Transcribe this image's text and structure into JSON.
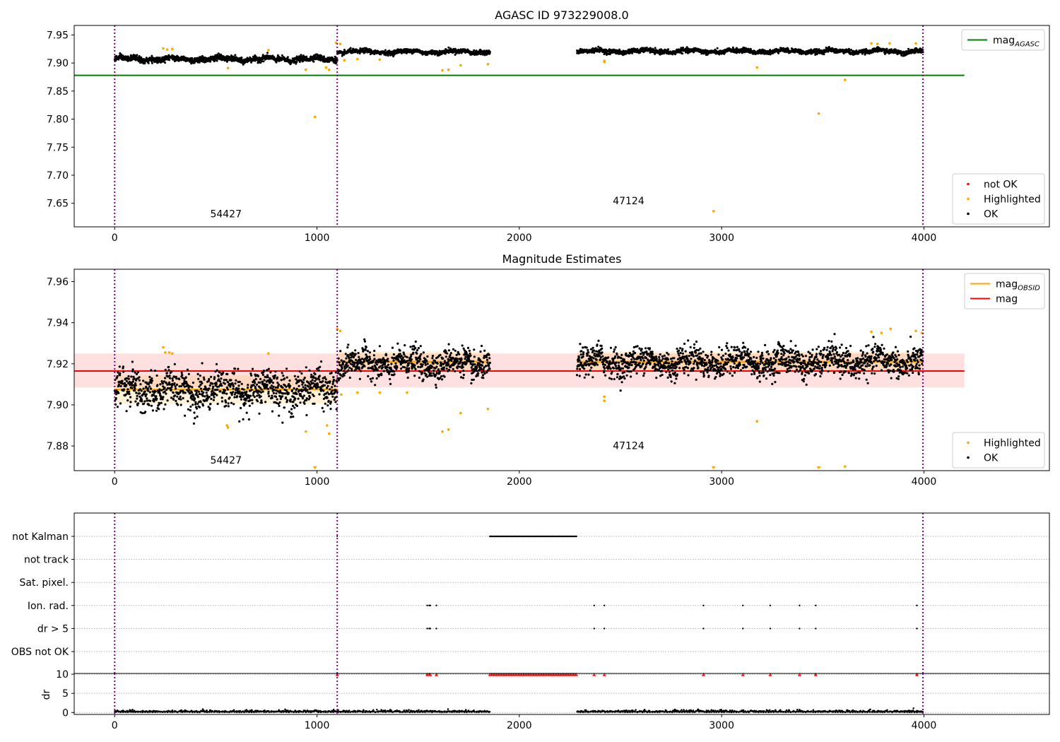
{
  "colors": {
    "ok": "#000000",
    "highlighted": "#ffa500",
    "not_ok": "#ff0000",
    "mag_agasc": "#008000",
    "mag_obsid": "#ffa500",
    "mag": "#ff0000",
    "obs_boundary": "#800080",
    "obs_boundary_alt": "#0000ff",
    "grid": "#b0b0b0"
  },
  "chart_data": [
    {
      "id": "agasc",
      "type": "scatter",
      "title": "AGASC ID 973229008.0",
      "xlim": [
        -200,
        4620
      ],
      "ylim": [
        7.608,
        7.967
      ],
      "x_ticks": [
        0,
        1000,
        2000,
        3000,
        4000
      ],
      "y_ticks": [
        7.65,
        7.7,
        7.75,
        7.8,
        7.85,
        7.9,
        7.95
      ],
      "y_tick_labels": [
        "7.65",
        "7.70",
        "7.75",
        "7.80",
        "7.85",
        "7.90",
        "7.95"
      ],
      "obs_boundaries": [
        0,
        1100,
        3995
      ],
      "obs_labels": [
        {
          "text": "54427",
          "x": 550,
          "y": 7.625
        },
        {
          "text": "47124",
          "x": 2540,
          "y": 7.648
        }
      ],
      "reference_line": {
        "name": "mag_AGASC",
        "y": 7.878,
        "x0": -200,
        "x1": 4200
      },
      "segments": [
        {
          "x0": 0,
          "x1": 1100,
          "mean": 7.907,
          "std": 0.0045
        },
        {
          "x0": 1100,
          "x1": 1855,
          "mean": 7.92,
          "std": 0.0035
        },
        {
          "x0": 2285,
          "x1": 3995,
          "mean": 7.921,
          "std": 0.0035
        }
      ],
      "highlighted_points": [
        {
          "x": 240,
          "y": 7.926
        },
        {
          "x": 260,
          "y": 7.924
        },
        {
          "x": 285,
          "y": 7.925
        },
        {
          "x": 560,
          "y": 7.891
        },
        {
          "x": 760,
          "y": 7.923
        },
        {
          "x": 945,
          "y": 7.888
        },
        {
          "x": 990,
          "y": 7.804
        },
        {
          "x": 1045,
          "y": 7.892
        },
        {
          "x": 1060,
          "y": 7.888
        },
        {
          "x": 1095,
          "y": 7.936
        },
        {
          "x": 1115,
          "y": 7.934
        },
        {
          "x": 1135,
          "y": 7.905
        },
        {
          "x": 1200,
          "y": 7.907
        },
        {
          "x": 1310,
          "y": 7.906
        },
        {
          "x": 1620,
          "y": 7.887
        },
        {
          "x": 1650,
          "y": 7.888
        },
        {
          "x": 1710,
          "y": 7.896
        },
        {
          "x": 1845,
          "y": 7.898
        },
        {
          "x": 2420,
          "y": 7.904
        },
        {
          "x": 2420,
          "y": 7.902
        },
        {
          "x": 3175,
          "y": 7.892
        },
        {
          "x": 3480,
          "y": 7.81
        },
        {
          "x": 3610,
          "y": 7.87
        },
        {
          "x": 2960,
          "y": 7.636
        },
        {
          "x": 3740,
          "y": 7.935
        },
        {
          "x": 3770,
          "y": 7.934
        },
        {
          "x": 3830,
          "y": 7.935
        },
        {
          "x": 3960,
          "y": 7.935
        }
      ],
      "legends": [
        {
          "position": "upper-right",
          "entries": [
            {
              "label": "mag",
              "sub": "AGASC",
              "kind": "line",
              "color": "#008000"
            }
          ]
        },
        {
          "position": "lower-right",
          "entries": [
            {
              "label": "not OK",
              "kind": "marker",
              "color": "#ff0000"
            },
            {
              "label": "Highlighted",
              "kind": "marker",
              "color": "#ffa500"
            },
            {
              "label": "OK",
              "kind": "marker",
              "color": "#000000"
            }
          ]
        }
      ]
    },
    {
      "id": "estimates",
      "type": "scatter",
      "title": "Magnitude Estimates",
      "xlim": [
        -200,
        4620
      ],
      "ylim": [
        7.868,
        7.966
      ],
      "x_ticks": [
        0,
        1000,
        2000,
        3000,
        4000
      ],
      "y_ticks": [
        7.88,
        7.9,
        7.92,
        7.94,
        7.96
      ],
      "y_tick_labels": [
        "7.88",
        "7.90",
        "7.92",
        "7.94",
        "7.96"
      ],
      "obs_boundaries": [
        0,
        1100,
        3995
      ],
      "obs_labels": [
        {
          "text": "54427",
          "x": 550,
          "y": 7.8715
        },
        {
          "text": "47124",
          "x": 2540,
          "y": 7.8785
        }
      ],
      "mag": {
        "y": 7.9165,
        "band": [
          7.9085,
          7.925
        ],
        "x0": -200,
        "x1": 4200
      },
      "mag_obsid": [
        {
          "x0": 0,
          "x1": 1100,
          "y": 7.9075,
          "band": [
            7.9005,
            7.9145
          ]
        },
        {
          "x0": 1100,
          "x1": 1855,
          "y": 7.921,
          "band": [
            7.9165,
            7.926
          ]
        },
        {
          "x0": 2285,
          "x1": 3995,
          "y": 7.921,
          "band": [
            7.9165,
            7.926
          ]
        }
      ],
      "highlighted_points": [
        {
          "x": 240,
          "y": 7.928
        },
        {
          "x": 250,
          "y": 7.9255
        },
        {
          "x": 270,
          "y": 7.9255
        },
        {
          "x": 285,
          "y": 7.925
        },
        {
          "x": 555,
          "y": 7.89
        },
        {
          "x": 560,
          "y": 7.889
        },
        {
          "x": 760,
          "y": 7.925
        },
        {
          "x": 945,
          "y": 7.887
        },
        {
          "x": 1050,
          "y": 7.89
        },
        {
          "x": 1060,
          "y": 7.886
        },
        {
          "x": 1100,
          "y": 7.937
        },
        {
          "x": 1115,
          "y": 7.936
        },
        {
          "x": 1120,
          "y": 7.905
        },
        {
          "x": 1200,
          "y": 7.906
        },
        {
          "x": 1310,
          "y": 7.906
        },
        {
          "x": 1445,
          "y": 7.906
        },
        {
          "x": 1620,
          "y": 7.887
        },
        {
          "x": 1650,
          "y": 7.888
        },
        {
          "x": 1710,
          "y": 7.896
        },
        {
          "x": 1845,
          "y": 7.898
        },
        {
          "x": 2420,
          "y": 7.904
        },
        {
          "x": 2420,
          "y": 7.902
        },
        {
          "x": 3175,
          "y": 7.892
        },
        {
          "x": 3610,
          "y": 7.87
        },
        {
          "x": 3740,
          "y": 7.9355
        },
        {
          "x": 3790,
          "y": 7.935
        },
        {
          "x": 3835,
          "y": 7.937
        },
        {
          "x": 3960,
          "y": 7.936
        },
        {
          "x": 3990,
          "y": 7.935
        }
      ],
      "off_scale_points": [
        {
          "x": 990
        },
        {
          "x": 2960
        },
        {
          "x": 3480
        }
      ],
      "legends": [
        {
          "position": "upper-right",
          "entries": [
            {
              "label": "mag",
              "sub": "OBSID",
              "kind": "line",
              "color": "#ffa500"
            },
            {
              "label": "mag",
              "kind": "line",
              "color": "#ff0000"
            }
          ]
        },
        {
          "position": "lower-right",
          "entries": [
            {
              "label": "Highlighted",
              "kind": "marker",
              "color": "#ffa500"
            },
            {
              "label": "OK",
              "kind": "marker",
              "color": "#000000"
            }
          ]
        }
      ]
    },
    {
      "id": "flags",
      "type": "scatter",
      "xlim": [
        -200,
        4620
      ],
      "x_ticks": [
        0,
        1000,
        2000,
        3000,
        4000
      ],
      "obs_boundaries": [
        0,
        1100,
        3995
      ],
      "flag_rows": [
        "not Kalman",
        "not track",
        "Sat. pixel.",
        "Ion. rad.",
        "dr > 5",
        "OBS not OK"
      ],
      "not_kalman_range": [
        1855,
        2285
      ],
      "ion_rad_x": [
        1545,
        1555,
        1560,
        1590,
        2370,
        2420,
        2910,
        3105,
        3240,
        3385,
        3465,
        3965
      ],
      "dr_gt5_x": [
        1545,
        1555,
        1560,
        1590,
        2370,
        2420,
        2910,
        3105,
        3240,
        3385,
        3465,
        3965
      ],
      "dr_panel": {
        "ylabel": "dr",
        "ylim": [
          -0.5,
          10.2
        ],
        "y_ticks": [
          0,
          5,
          10
        ],
        "y_tick_labels": [
          "0",
          "5",
          "10"
        ],
        "clipped_value": 10,
        "clipped_x": [
          1100,
          1545,
          1555,
          1560,
          1590,
          2370,
          2420,
          2910,
          3105,
          3240,
          3385,
          3465,
          3965
        ],
        "clipped_range": [
          1855,
          2285
        ]
      }
    }
  ]
}
